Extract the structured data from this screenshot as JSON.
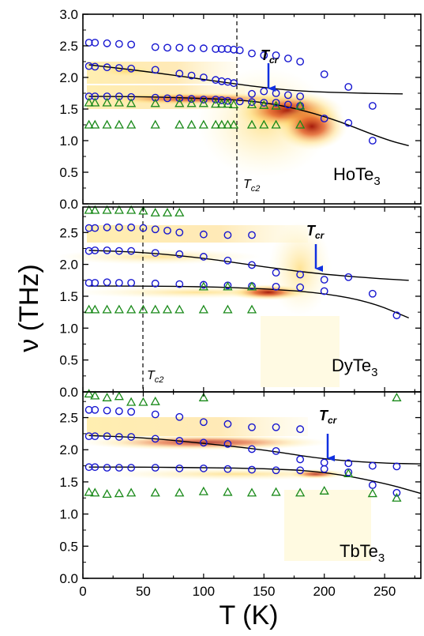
{
  "figure": {
    "ylabel": "ν (THz)",
    "xlabel": "T (K)",
    "xlim": [
      0,
      280
    ],
    "xticks": [
      0,
      50,
      100,
      150,
      200,
      250
    ],
    "colors": {
      "circle": "#1515d0",
      "triangle": "#1a8a1a",
      "arrow": "#1030e0",
      "fit": "#000000"
    }
  },
  "chart_data": [
    {
      "type": "scatter",
      "sample": "HoTe3",
      "label_main": "HoTe",
      "label_sub": "3",
      "ylim": [
        0.0,
        3.0
      ],
      "yticks": [
        0.0,
        0.5,
        1.0,
        1.5,
        2.0,
        2.5,
        3.0
      ],
      "tcr": {
        "label_main": "T",
        "label_sub": "cr",
        "x": 150,
        "y_tip": 1.85,
        "y_tail": 2.2
      },
      "tc2": {
        "label_main": "T",
        "label_sub": "c2",
        "x": 127
      },
      "series": [
        {
          "marker": "circle",
          "x": [
            5,
            10,
            20,
            30,
            40,
            60,
            70,
            80,
            90,
            100,
            110,
            115,
            120,
            125,
            130,
            140,
            150,
            160,
            170,
            180,
            200,
            220,
            240
          ],
          "y": [
            2.55,
            2.55,
            2.54,
            2.53,
            2.52,
            2.48,
            2.47,
            2.47,
            2.46,
            2.46,
            2.45,
            2.45,
            2.45,
            2.44,
            2.43,
            2.38,
            2.35,
            2.35,
            2.3,
            2.25,
            2.05,
            1.85,
            1.55
          ]
        },
        {
          "marker": "circle",
          "x": [
            5,
            10,
            20,
            30,
            40,
            60,
            80,
            90,
            100,
            110,
            115,
            120,
            125,
            140,
            150,
            160,
            170,
            180,
            200,
            220,
            240
          ],
          "y": [
            2.18,
            2.17,
            2.16,
            2.15,
            2.14,
            2.12,
            2.06,
            2.03,
            2.0,
            1.96,
            1.94,
            1.93,
            1.91,
            1.74,
            1.78,
            1.75,
            1.72,
            1.7,
            1.35,
            1.28,
            1.0
          ]
        },
        {
          "marker": "circle",
          "x": [
            5,
            10,
            20,
            30,
            40,
            60,
            70,
            80,
            90,
            100,
            110,
            115,
            120,
            130,
            140,
            150,
            160,
            170,
            180
          ],
          "y": [
            1.7,
            1.7,
            1.7,
            1.7,
            1.69,
            1.68,
            1.67,
            1.67,
            1.66,
            1.65,
            1.65,
            1.64,
            1.63,
            1.62,
            1.61,
            1.6,
            1.6,
            1.57,
            1.55
          ]
        },
        {
          "marker": "triangle",
          "x": [
            5,
            10,
            20,
            30,
            40,
            60,
            80,
            90,
            100,
            110,
            115,
            120,
            125,
            140,
            150,
            160,
            180
          ],
          "y": [
            1.6,
            1.6,
            1.6,
            1.6,
            1.59,
            1.59,
            1.59,
            1.59,
            1.59,
            1.58,
            1.58,
            1.58,
            1.57,
            1.57,
            1.56,
            1.55,
            1.55
          ]
        },
        {
          "marker": "triangle",
          "x": [
            5,
            10,
            20,
            30,
            40,
            60,
            80,
            90,
            100,
            110,
            115,
            120,
            125,
            140,
            150,
            160,
            180
          ],
          "y": [
            1.25,
            1.25,
            1.25,
            1.25,
            1.25,
            1.25,
            1.25,
            1.25,
            1.25,
            1.25,
            1.25,
            1.25,
            1.25,
            1.25,
            1.25,
            1.25,
            1.25
          ]
        }
      ],
      "fits": [
        {
          "x": [
            5,
            50,
            100,
            150,
            200,
            250,
            270
          ],
          "y": [
            1.7,
            1.695,
            1.67,
            1.62,
            1.4,
            1.02,
            0.92
          ]
        },
        {
          "x": [
            5,
            50,
            100,
            140,
            180,
            230,
            265
          ],
          "y": [
            2.2,
            2.1,
            1.97,
            1.86,
            1.78,
            1.75,
            1.74
          ]
        }
      ]
    },
    {
      "type": "scatter",
      "sample": "DyTe3",
      "label_main": "DyTe",
      "label_sub": "3",
      "ylim": [
        0.0,
        2.9
      ],
      "yticks": [
        0.0,
        0.5,
        1.0,
        1.5,
        2.0,
        2.5
      ],
      "tcr": {
        "label_main": "T",
        "label_sub": "cr",
        "x": 190,
        "y_tip": 2.03,
        "y_tail": 2.4
      },
      "tc2": {
        "label_main": "T",
        "label_sub": "c2",
        "x": 50
      },
      "series": [
        {
          "marker": "circle",
          "x": [
            5,
            10,
            20,
            30,
            40,
            50,
            60,
            70,
            80,
            100,
            120,
            140
          ],
          "y": [
            2.57,
            2.57,
            2.58,
            2.58,
            2.58,
            2.57,
            2.55,
            2.53,
            2.5,
            2.47,
            2.46,
            2.46
          ]
        },
        {
          "marker": "circle",
          "x": [
            5,
            10,
            20,
            30,
            40,
            60,
            80,
            100,
            120,
            140,
            160,
            180,
            200,
            220,
            240,
            260
          ],
          "y": [
            2.21,
            2.22,
            2.22,
            2.21,
            2.21,
            2.18,
            2.16,
            2.12,
            2.06,
            1.99,
            1.87,
            1.84,
            1.76,
            1.8,
            1.54,
            1.2
          ]
        },
        {
          "marker": "circle",
          "x": [
            5,
            10,
            20,
            30,
            40,
            60,
            80,
            100,
            120,
            140,
            160,
            180,
            200
          ],
          "y": [
            1.71,
            1.71,
            1.72,
            1.71,
            1.71,
            1.7,
            1.69,
            1.68,
            1.67,
            1.66,
            1.65,
            1.64,
            1.58
          ]
        },
        {
          "marker": "triangle",
          "x": [
            5,
            10,
            20,
            30,
            40,
            50,
            60,
            70,
            80,
            100,
            120,
            140
          ],
          "y": [
            2.85,
            2.85,
            2.85,
            2.85,
            2.85,
            2.84,
            2.81,
            2.81,
            2.81,
            1.65,
            1.65,
            1.65
          ]
        },
        {
          "marker": "triangle",
          "x": [
            5,
            10,
            20,
            30,
            40,
            50,
            60,
            70,
            80,
            100,
            120,
            140
          ],
          "y": [
            1.29,
            1.29,
            1.29,
            1.29,
            1.29,
            1.29,
            1.29,
            1.29,
            1.29,
            1.29,
            1.29,
            1.29
          ]
        }
      ],
      "fits": [
        {
          "x": [
            5,
            50,
            100,
            150,
            200,
            240,
            270
          ],
          "y": [
            1.66,
            1.66,
            1.65,
            1.62,
            1.55,
            1.4,
            1.16
          ]
        },
        {
          "x": [
            5,
            50,
            100,
            150,
            200,
            250,
            270
          ],
          "y": [
            2.22,
            2.19,
            2.1,
            1.96,
            1.84,
            1.77,
            1.75
          ]
        }
      ]
    },
    {
      "type": "scatter",
      "sample": "TbTe3",
      "label_main": "TbTe",
      "label_sub": "3",
      "ylim": [
        0.0,
        2.9
      ],
      "yticks": [
        0.0,
        0.5,
        1.0,
        1.5,
        2.0,
        2.5
      ],
      "tcr": {
        "label_main": "T",
        "label_sub": "cr",
        "x": 200,
        "y_tip": 1.78,
        "y_tail": 2.16
      },
      "series": [
        {
          "marker": "circle",
          "x": [
            5,
            10,
            20,
            30,
            40,
            60,
            80,
            100,
            120,
            140,
            160,
            180
          ],
          "y": [
            2.62,
            2.62,
            2.61,
            2.6,
            2.59,
            2.55,
            2.51,
            2.43,
            2.4,
            2.35,
            2.35,
            2.32
          ]
        },
        {
          "marker": "circle",
          "x": [
            5,
            10,
            20,
            30,
            40,
            60,
            80,
            100,
            120,
            140,
            160,
            180,
            200,
            220,
            240,
            260
          ],
          "y": [
            2.21,
            2.21,
            2.21,
            2.2,
            2.2,
            2.17,
            2.14,
            2.11,
            2.09,
            2.01,
            1.98,
            1.85,
            1.8,
            1.79,
            1.75,
            1.74
          ]
        },
        {
          "marker": "circle",
          "x": [
            5,
            10,
            20,
            30,
            40,
            60,
            80,
            100,
            120,
            140,
            160,
            180,
            200,
            220,
            240,
            260
          ],
          "y": [
            1.73,
            1.73,
            1.72,
            1.72,
            1.72,
            1.72,
            1.71,
            1.71,
            1.7,
            1.69,
            1.68,
            1.68,
            1.7,
            1.65,
            1.45,
            1.33
          ]
        },
        {
          "marker": "triangle",
          "x": [
            5,
            10,
            20,
            30,
            40,
            50,
            60,
            100,
            260
          ],
          "y": [
            2.87,
            2.84,
            2.81,
            2.83,
            2.74,
            2.74,
            2.75,
            2.81,
            2.81
          ]
        },
        {
          "marker": "triangle",
          "x": [
            5,
            10,
            20,
            30,
            40,
            60,
            80,
            100,
            120,
            140,
            160,
            180,
            200,
            220,
            240,
            260
          ],
          "y": [
            1.34,
            1.33,
            1.31,
            1.32,
            1.33,
            1.33,
            1.33,
            1.35,
            1.34,
            1.33,
            1.34,
            1.33,
            1.36,
            1.63,
            1.32,
            1.25
          ]
        }
      ],
      "fits": [
        {
          "x": [
            5,
            50,
            100,
            150,
            200,
            250,
            280
          ],
          "y": [
            1.73,
            1.73,
            1.72,
            1.71,
            1.66,
            1.48,
            1.32
          ]
        },
        {
          "x": [
            5,
            50,
            100,
            150,
            200,
            250,
            280
          ],
          "y": [
            2.22,
            2.19,
            2.1,
            2.0,
            1.85,
            1.79,
            1.78
          ]
        }
      ]
    }
  ]
}
